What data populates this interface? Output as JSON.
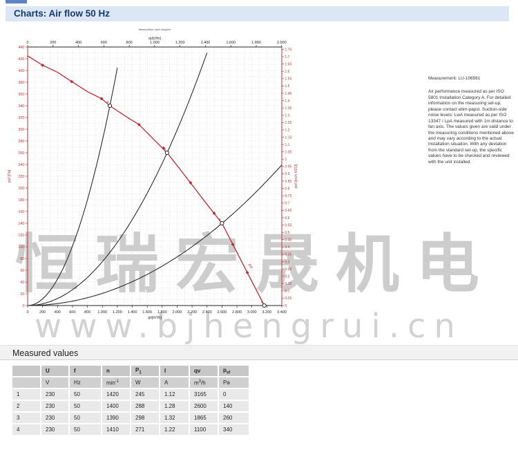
{
  "header": {
    "title": "Charts: Air flow 50 Hz"
  },
  "note": {
    "title": "Measurement: LU-106561",
    "body": "Air performance measured as per ISO 5801 Installation Category A. For detailed information on the measuring set-up, please contact ebm-papst. Suction-side noise levels: LwA measured as per ISO 13347 / LpA measured with 1m distance to fan axis. The values given are valid under the measuring conditions mentioned above and may vary according to the actual installation situation. With any deviation from the standard set-up, the specific values have to be checked and reviewed with the unit installed."
  },
  "watermark": {
    "text_cjk": "恒瑞宏晟机电",
    "text_url": "www.bjhengrui.cn"
  },
  "measured_values": {
    "title": "Measured values",
    "columns_html": [
      "",
      "U",
      "f",
      "n",
      "P<sub>1</sub>",
      "I",
      "qv",
      "p<sub>sf</sub>"
    ],
    "units_html": [
      "",
      "V",
      "Hz",
      "min<sup>-1</sup>",
      "W",
      "A",
      "m<sup>3</sup>/h",
      "Pa"
    ],
    "rows": [
      [
        "1",
        "230",
        "50",
        "1420",
        "245",
        "1.12",
        "3165",
        "0"
      ],
      [
        "2",
        "230",
        "50",
        "1400",
        "288",
        "1.28",
        "2600",
        "140"
      ],
      [
        "3",
        "230",
        "50",
        "1390",
        "298",
        "1.32",
        "1865",
        "260"
      ],
      [
        "4",
        "230",
        "50",
        "1410",
        "271",
        "1.22",
        "1100",
        "340"
      ]
    ]
  },
  "chart_data": {
    "type": "line",
    "fine_print": "Messaufbau nach Angabe",
    "plot": {
      "x_range": [
        0,
        3400
      ],
      "y_range": [
        0,
        440
      ],
      "cfm_range": [
        0,
        2000
      ],
      "cfm_to_m3h": 1.699,
      "inch_range": [
        0,
        1.75
      ],
      "inch_to_pa": 249.1,
      "grid_step_x": 100,
      "grid_step_y": 10
    },
    "axes": {
      "bottom": {
        "label": "qv[m³/h]",
        "tick_step": 200,
        "color": "#222222",
        "tick_labels": [
          "0",
          "200",
          "400",
          "600",
          "800",
          "1.000",
          "1.200",
          "1.400",
          "1.600",
          "1.800",
          "2.000",
          "2.200",
          "2.400",
          "2.600",
          "2.800",
          "3.000",
          "3.200",
          "3.400"
        ]
      },
      "top": {
        "label": "qv[cfm]",
        "tick_step": 200,
        "color": "#222222",
        "tick_labels": [
          "0",
          "200",
          "400",
          "600",
          "800",
          "1.000",
          "1.200",
          "1.400",
          "1.600",
          "1.800",
          "2.000"
        ]
      },
      "left": {
        "label": "psf [Pa]",
        "tick_step": 20,
        "color": "#c23535",
        "tick_labels": [
          "0",
          "20",
          "40",
          "60",
          "80",
          "100",
          "120",
          "140",
          "160",
          "180",
          "200",
          "220",
          "240",
          "260",
          "280",
          "300",
          "320",
          "340",
          "360",
          "380",
          "400",
          "420",
          "440"
        ]
      },
      "right": {
        "label": "psf [inch H2O]",
        "tick_step": 0.05,
        "color": "#c23535",
        "tick_labels": [
          "0",
          "0.05",
          "0.1",
          "0.15",
          "0.2",
          "0.25",
          "0.3",
          "0.35",
          "0.4",
          "0.45",
          "0.5",
          "0.55",
          "0.6",
          "0.65",
          "0.7",
          "0.75",
          "0.8",
          "0.85",
          "0.9",
          "0.95",
          "1",
          "1.05",
          "1.1",
          "1.15",
          "1.2",
          "1.25",
          "1.3",
          "1.35",
          "1.4",
          "1.45",
          "1.5",
          "1.55",
          "1.6",
          "1.65",
          "1.7",
          "1.75"
        ]
      }
    },
    "series": [
      {
        "name": "fan-pressure-curve",
        "color": "#c2262e",
        "end_label": "psf",
        "points": [
          [
            0,
            425
          ],
          [
            200,
            409
          ],
          [
            400,
            397
          ],
          [
            590,
            381
          ],
          [
            800,
            364
          ],
          [
            990,
            352
          ],
          [
            1100,
            340
          ],
          [
            1300,
            323
          ],
          [
            1490,
            308
          ],
          [
            1700,
            281
          ],
          [
            1865,
            260
          ],
          [
            2050,
            230
          ],
          [
            2250,
            197
          ],
          [
            2400,
            172
          ],
          [
            2495,
            157
          ],
          [
            2600,
            140
          ],
          [
            2745,
            104
          ],
          [
            2939,
            56
          ],
          [
            3080,
            21
          ],
          [
            3165,
            0
          ]
        ],
        "marker_points": [
          [
            200,
            409
          ],
          [
            590,
            381
          ],
          [
            990,
            352
          ],
          [
            1490,
            308
          ],
          [
            1817,
            268
          ],
          [
            2180,
            209
          ],
          [
            2495,
            157
          ],
          [
            2745,
            104
          ],
          [
            2939,
            56
          ]
        ]
      },
      {
        "name": "system-curve-4",
        "type": "parabola",
        "k": 0.000281,
        "max_p": 424,
        "color": "#2b2b2b"
      },
      {
        "name": "system-curve-3",
        "type": "parabola",
        "k": 7.47e-05,
        "max_p": 440,
        "color": "#2b2b2b"
      },
      {
        "name": "system-curve-2",
        "type": "parabola",
        "k": 2.07e-05,
        "max_p": 440,
        "color": "#2b2b2b"
      }
    ],
    "measured_points": [
      {
        "label": "1",
        "qv": 3165,
        "psf": 0
      },
      {
        "label": "2",
        "qv": 2600,
        "psf": 140
      },
      {
        "label": "3",
        "qv": 1865,
        "psf": 260
      },
      {
        "label": "4",
        "qv": 1100,
        "psf": 340
      }
    ]
  }
}
